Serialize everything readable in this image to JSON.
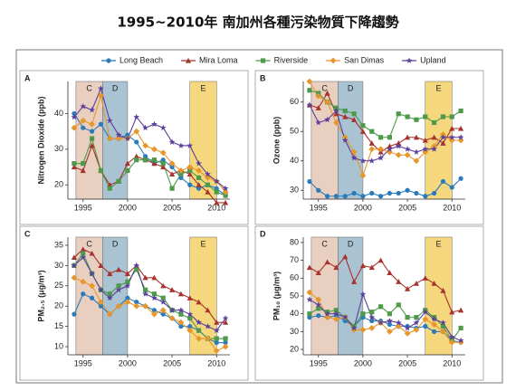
{
  "title": "1995~2010年 南加州各種污染物質下降趨勢",
  "chart_data": [
    {
      "type": "line",
      "panel": "A",
      "y_label": "Nitrogen Dioxide (ppb)",
      "x": [
        1994,
        1995,
        1996,
        1997,
        1998,
        1999,
        2000,
        2001,
        2002,
        2003,
        2004,
        2005,
        2006,
        2007,
        2008,
        2009,
        2010,
        2011
      ],
      "xlim": [
        1993.5,
        2011.5
      ],
      "ylim": [
        16,
        49
      ],
      "xticks": [
        1995,
        2000,
        2005,
        2010
      ],
      "yticks": [
        20,
        30,
        40
      ],
      "regions": [
        {
          "label": "C",
          "start": 1994.2,
          "end": 1997.2,
          "color": "#e8cfc0"
        },
        {
          "label": "D",
          "start": 1997.2,
          "end": 2000,
          "color": "#a9c3d3"
        },
        {
          "label": "E",
          "start": 2007,
          "end": 2010,
          "color": "#f5d77e"
        }
      ],
      "series": [
        {
          "name": "Long Beach",
          "color": "#2b7bba",
          "marker": "circle",
          "values": [
            40,
            36,
            35,
            37,
            33,
            33,
            34,
            32,
            28,
            26,
            27,
            25,
            22,
            20,
            19,
            20,
            19,
            17
          ]
        },
        {
          "name": "Mira Loma",
          "color": "#a8322d",
          "marker": "triangle",
          "values": [
            25,
            24,
            31,
            24,
            20,
            21,
            26,
            28,
            27,
            26,
            25,
            23,
            24,
            23,
            20,
            18,
            15,
            15
          ]
        },
        {
          "name": "Riverside",
          "color": "#4e9a4a",
          "marker": "square",
          "values": [
            26,
            26,
            33,
            24,
            19,
            21,
            24,
            27,
            27,
            27,
            26,
            19,
            23,
            24,
            22,
            20,
            18,
            17
          ]
        },
        {
          "name": "San Dimas",
          "color": "#e8962a",
          "marker": "diamond",
          "values": [
            36,
            38,
            37,
            45,
            33,
            33,
            33,
            35,
            31,
            30,
            29,
            26,
            24,
            25,
            24,
            22,
            21,
            18
          ]
        },
        {
          "name": "Upland",
          "color": "#5b3f9c",
          "marker": "star",
          "values": [
            39,
            42,
            41,
            47,
            38,
            34,
            33,
            39,
            36,
            37,
            36,
            32,
            31,
            31,
            26,
            23,
            21,
            19
          ]
        }
      ]
    },
    {
      "type": "line",
      "panel": "B",
      "y_label": "Ozone (ppb)",
      "x": [
        1994,
        1995,
        1996,
        1997,
        1998,
        1999,
        2000,
        2001,
        2002,
        2003,
        2004,
        2005,
        2006,
        2007,
        2008,
        2009,
        2010,
        2011
      ],
      "xlim": [
        1993.5,
        2011.5
      ],
      "ylim": [
        27,
        67
      ],
      "xticks": [
        1995,
        2000,
        2005,
        2010
      ],
      "yticks": [
        30,
        40,
        50,
        60
      ],
      "regions": [
        {
          "label": "C",
          "start": 1994.2,
          "end": 1997.2,
          "color": "#e8cfc0"
        },
        {
          "label": "D",
          "start": 1997.2,
          "end": 2000,
          "color": "#a9c3d3"
        },
        {
          "label": "E",
          "start": 2007,
          "end": 2010,
          "color": "#f5d77e"
        }
      ],
      "series": [
        {
          "name": "Long Beach",
          "color": "#2b7bba",
          "marker": "circle",
          "values": [
            33,
            30,
            28,
            28,
            28,
            29,
            28,
            29,
            28,
            29,
            29,
            30,
            29,
            28,
            29,
            33,
            31,
            34
          ]
        },
        {
          "name": "Mira Loma",
          "color": "#a8322d",
          "marker": "triangle",
          "values": [
            59,
            58,
            63,
            56,
            55,
            54,
            50,
            46,
            43,
            45,
            46,
            48,
            48,
            47,
            48,
            46,
            51,
            51
          ]
        },
        {
          "name": "Riverside",
          "color": "#4e9a4a",
          "marker": "square",
          "values": [
            64,
            63,
            60,
            58,
            57,
            56,
            52,
            50,
            48,
            48,
            56,
            55,
            54,
            55,
            53,
            55,
            55,
            57
          ]
        },
        {
          "name": "San Dimas",
          "color": "#e8962a",
          "marker": "diamond",
          "values": [
            67,
            62,
            60,
            53,
            48,
            43,
            35,
            44,
            44,
            43,
            42,
            42,
            40,
            43,
            45,
            49,
            47,
            47
          ]
        },
        {
          "name": "Upland",
          "color": "#5b3f9c",
          "marker": "star",
          "values": [
            59,
            53,
            54,
            57,
            47,
            41,
            40,
            40,
            41,
            44,
            45,
            44,
            43,
            44,
            44,
            48,
            48,
            48
          ]
        }
      ]
    },
    {
      "type": "line",
      "panel": "C",
      "y_label": "PM₂.₅ (μg/m³)",
      "x": [
        1994,
        1995,
        1996,
        1997,
        1998,
        1999,
        2000,
        2001,
        2002,
        2003,
        2004,
        2005,
        2006,
        2007,
        2008,
        2009,
        2010,
        2011
      ],
      "xlim": [
        1993.5,
        2011.5
      ],
      "ylim": [
        8,
        37
      ],
      "xticks": [
        1995,
        2000,
        2005,
        2010
      ],
      "yticks": [
        10,
        15,
        20,
        25,
        30,
        35
      ],
      "regions": [
        {
          "label": "C",
          "start": 1994.2,
          "end": 1997.2,
          "color": "#e8cfc0"
        },
        {
          "label": "D",
          "start": 1997.2,
          "end": 2000,
          "color": "#a9c3d3"
        },
        {
          "label": "E",
          "start": 2007,
          "end": 2010,
          "color": "#f5d77e"
        }
      ],
      "series": [
        {
          "name": "Long Beach",
          "color": "#2b7bba",
          "marker": "circle",
          "values": [
            18,
            23,
            22,
            20,
            18,
            20,
            22,
            21,
            20,
            19,
            18,
            17,
            15,
            15,
            14,
            12,
            11,
            11
          ]
        },
        {
          "name": "Mira Loma",
          "color": "#a8322d",
          "marker": "triangle",
          "values": [
            32,
            34,
            33,
            30,
            28,
            29,
            28,
            30,
            27,
            27,
            25,
            24,
            23,
            22,
            21,
            19,
            16,
            16
          ]
        },
        {
          "name": "Riverside",
          "color": "#4e9a4a",
          "marker": "square",
          "values": [
            30,
            33,
            28,
            24,
            23,
            25,
            26,
            29,
            24,
            23,
            22,
            19,
            18,
            17,
            14,
            12,
            12,
            12
          ]
        },
        {
          "name": "San Dimas",
          "color": "#e8962a",
          "marker": "diamond",
          "values": [
            27,
            26,
            25,
            21,
            18,
            20,
            21,
            20,
            20,
            18,
            19,
            17,
            16,
            14,
            12,
            12,
            9,
            10
          ]
        },
        {
          "name": "Upland",
          "color": "#5b3f9c",
          "marker": "star",
          "values": [
            30,
            32,
            28,
            24,
            22,
            24,
            25,
            30,
            23,
            22,
            21,
            19,
            19,
            18,
            16,
            15,
            14,
            17
          ]
        }
      ]
    },
    {
      "type": "line",
      "panel": "D",
      "y_label": "PM₁₀ (μg/m³)",
      "x": [
        1994,
        1995,
        1996,
        1997,
        1998,
        1999,
        2000,
        2001,
        2002,
        2003,
        2004,
        2005,
        2006,
        2007,
        2008,
        2009,
        2010,
        2011
      ],
      "xlim": [
        1993.5,
        2011.5
      ],
      "ylim": [
        17,
        83
      ],
      "xticks": [
        1995,
        2000,
        2005,
        2010
      ],
      "yticks": [
        20,
        30,
        40,
        50,
        60,
        70,
        80
      ],
      "regions": [
        {
          "label": "C",
          "start": 1994.2,
          "end": 1997.2,
          "color": "#e8cfc0"
        },
        {
          "label": "D",
          "start": 1997.2,
          "end": 2000,
          "color": "#a9c3d3"
        },
        {
          "label": "E",
          "start": 2007,
          "end": 2010,
          "color": "#f5d77e"
        }
      ],
      "series": [
        {
          "name": "Long Beach",
          "color": "#2b7bba",
          "marker": "circle",
          "values": [
            38,
            39,
            38,
            39,
            36,
            33,
            38,
            36,
            36,
            34,
            33,
            33,
            32,
            33,
            30,
            30,
            25,
            24
          ]
        },
        {
          "name": "Mira Loma",
          "color": "#a8322d",
          "marker": "triangle",
          "values": [
            66,
            63,
            69,
            66,
            72,
            58,
            67,
            66,
            70,
            63,
            58,
            54,
            57,
            60,
            57,
            53,
            41,
            42
          ]
        },
        {
          "name": "Riverside",
          "color": "#4e9a4a",
          "marker": "square",
          "values": [
            40,
            43,
            41,
            42,
            38,
            33,
            40,
            41,
            44,
            40,
            45,
            38,
            38,
            42,
            38,
            33,
            25,
            32
          ]
        },
        {
          "name": "San Dimas",
          "color": "#e8962a",
          "marker": "diamond",
          "values": [
            52,
            48,
            38,
            37,
            38,
            31,
            31,
            32,
            35,
            30,
            33,
            29,
            31,
            37,
            34,
            30,
            24,
            24
          ]
        },
        {
          "name": "Upland",
          "color": "#5b3f9c",
          "marker": "star",
          "values": [
            48,
            45,
            40,
            40,
            38,
            32,
            51,
            38,
            35,
            36,
            35,
            32,
            35,
            41,
            37,
            35,
            27,
            25
          ]
        }
      ]
    }
  ]
}
